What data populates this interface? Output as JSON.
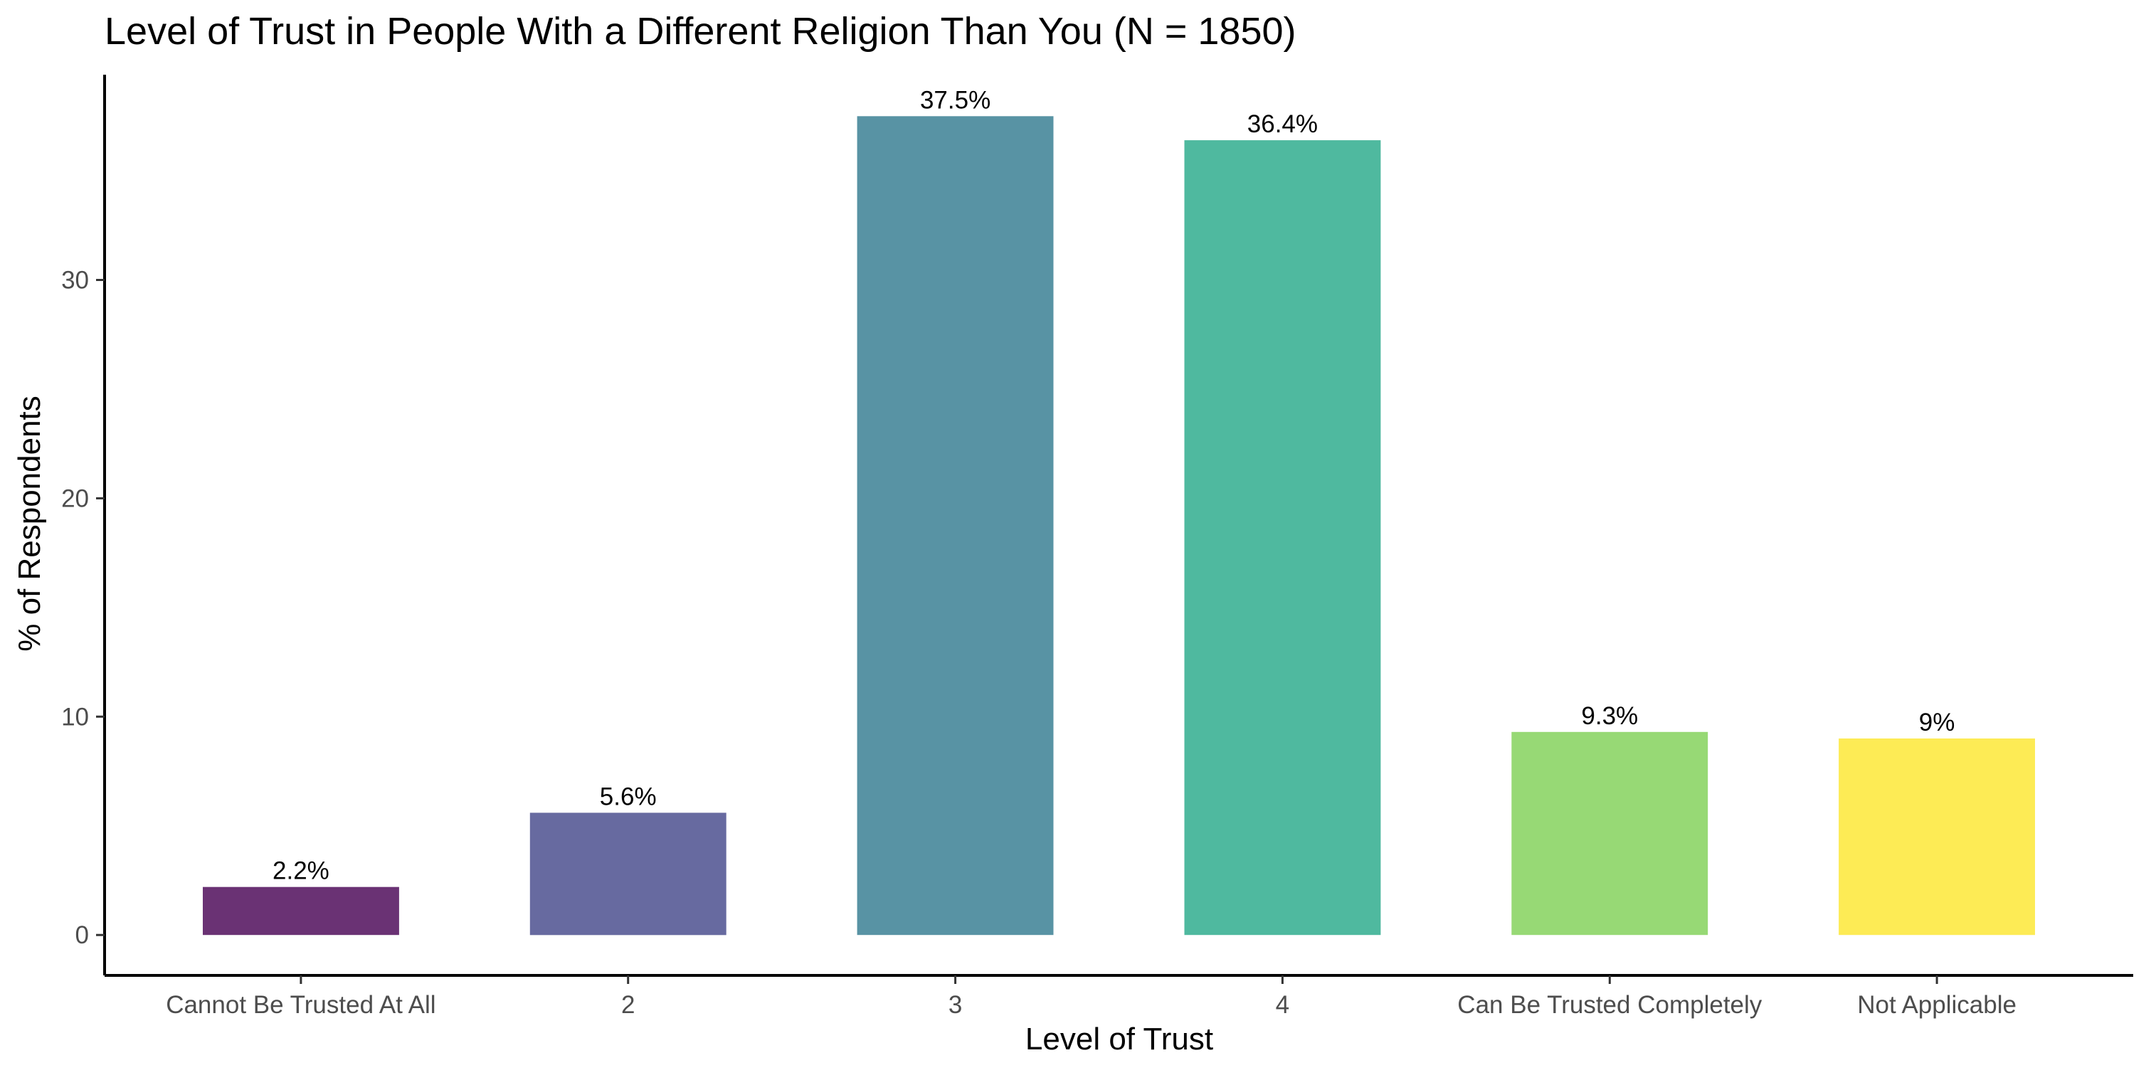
{
  "chart_data": {
    "type": "bar",
    "title": "Level of Trust in People With a Different Religion Than You (N = 1850)",
    "xlabel": "Level of Trust",
    "ylabel": "% of Respondents",
    "categories": [
      "Cannot Be Trusted At All",
      "2",
      "3",
      "4",
      "Can Be Trusted Completely",
      "Not Applicable"
    ],
    "values": [
      2.2,
      5.6,
      37.5,
      36.4,
      9.3,
      9.0
    ],
    "value_labels": [
      "2.2%",
      "5.6%",
      "37.5%",
      "36.4%",
      "9.3%",
      "9%"
    ],
    "colors": [
      "#6a3274",
      "#676aa0",
      "#5893a4",
      "#4fb99f",
      "#97d975",
      "#fdeb55"
    ],
    "yticks": [
      0,
      10,
      20,
      30
    ],
    "ylim": [
      -1.85,
      39.4
    ],
    "grid": false,
    "legend": "none"
  }
}
